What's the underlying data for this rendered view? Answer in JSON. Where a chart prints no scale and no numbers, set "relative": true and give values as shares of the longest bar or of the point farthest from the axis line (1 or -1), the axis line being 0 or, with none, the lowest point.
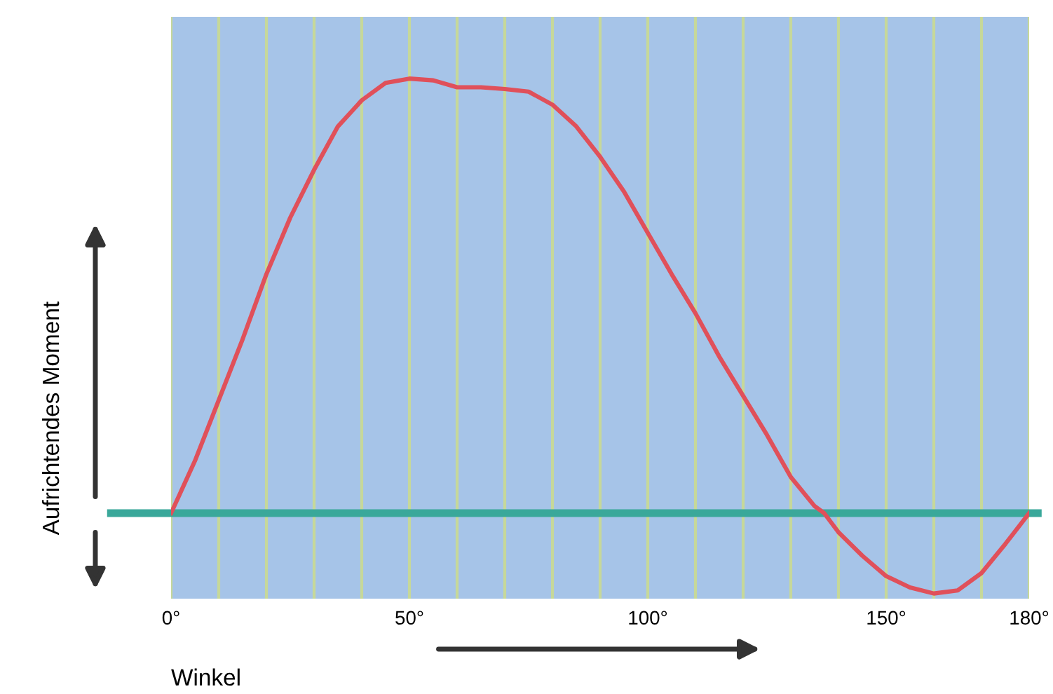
{
  "chart_data": {
    "type": "line",
    "relative": true,
    "xlabel": "Winkel",
    "ylabel": "Aufrichtendes Moment",
    "x": [
      0,
      5,
      10,
      15,
      20,
      25,
      30,
      35,
      40,
      45,
      50,
      55,
      60,
      65,
      70,
      75,
      80,
      85,
      90,
      95,
      100,
      105,
      110,
      115,
      120,
      125,
      130,
      135,
      137,
      140,
      145,
      150,
      155,
      160,
      165,
      170,
      175,
      180
    ],
    "series": [
      {
        "color": "#e0505a",
        "values": [
          0,
          0.12,
          0.26,
          0.4,
          0.55,
          0.68,
          0.79,
          0.89,
          0.95,
          0.99,
          1.0,
          0.996,
          0.98,
          0.98,
          0.976,
          0.97,
          0.94,
          0.89,
          0.82,
          0.74,
          0.645,
          0.55,
          0.46,
          0.36,
          0.27,
          0.18,
          0.083,
          0.016,
          0,
          -0.044,
          -0.098,
          -0.145,
          -0.171,
          -0.185,
          -0.178,
          -0.138,
          -0.071,
          0
        ]
      }
    ],
    "xlim": [
      0,
      180
    ],
    "xticks": [
      {
        "value": 0,
        "label": "0°"
      },
      {
        "value": 10,
        "label": null
      },
      {
        "value": 20,
        "label": null
      },
      {
        "value": 30,
        "label": null
      },
      {
        "value": 40,
        "label": null
      },
      {
        "value": 50,
        "label": "50°"
      },
      {
        "value": 60,
        "label": null
      },
      {
        "value": 70,
        "label": null
      },
      {
        "value": 80,
        "label": null
      },
      {
        "value": 90,
        "label": null
      },
      {
        "value": 100,
        "label": "100°"
      },
      {
        "value": 110,
        "label": null
      },
      {
        "value": 120,
        "label": null
      },
      {
        "value": 130,
        "label": null
      },
      {
        "value": 140,
        "label": null
      },
      {
        "value": 150,
        "label": "150°"
      },
      {
        "value": 160,
        "label": null
      },
      {
        "value": 170,
        "label": null
      },
      {
        "value": 180,
        "label": "180°"
      }
    ],
    "ref_lines": [
      {
        "axis": "y",
        "value": 0,
        "color": "#3aa89a"
      }
    ],
    "grid": "x",
    "tick_labels": "x",
    "marker": "none",
    "line_style": "solid",
    "legend": false
  }
}
